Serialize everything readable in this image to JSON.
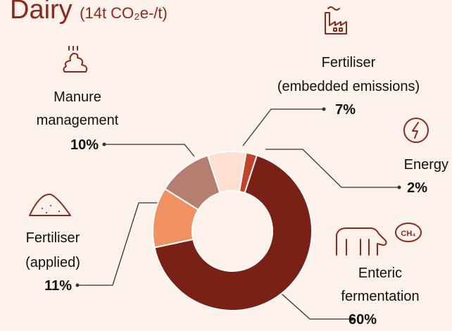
{
  "chart_data": {
    "type": "donut",
    "title": "Dairy",
    "subtitle": "(14t CO₂e-/t)",
    "categories": [
      [
        "Energy"
      ],
      [
        "Enteric",
        "fermentation"
      ],
      [
        "Fertiliser",
        "(applied)"
      ],
      [
        "Manure",
        "management"
      ],
      [
        "Fertiliser",
        "(embedded emissions)"
      ]
    ],
    "values": [
      2,
      60,
      11,
      10,
      7
    ],
    "value_labels": [
      "2%",
      "60%",
      "11%",
      "10%",
      "7%"
    ],
    "colors": [
      "#c2432a",
      "#7a2115",
      "#ef9160",
      "#b47f6f",
      "#fde0d1"
    ]
  }
}
